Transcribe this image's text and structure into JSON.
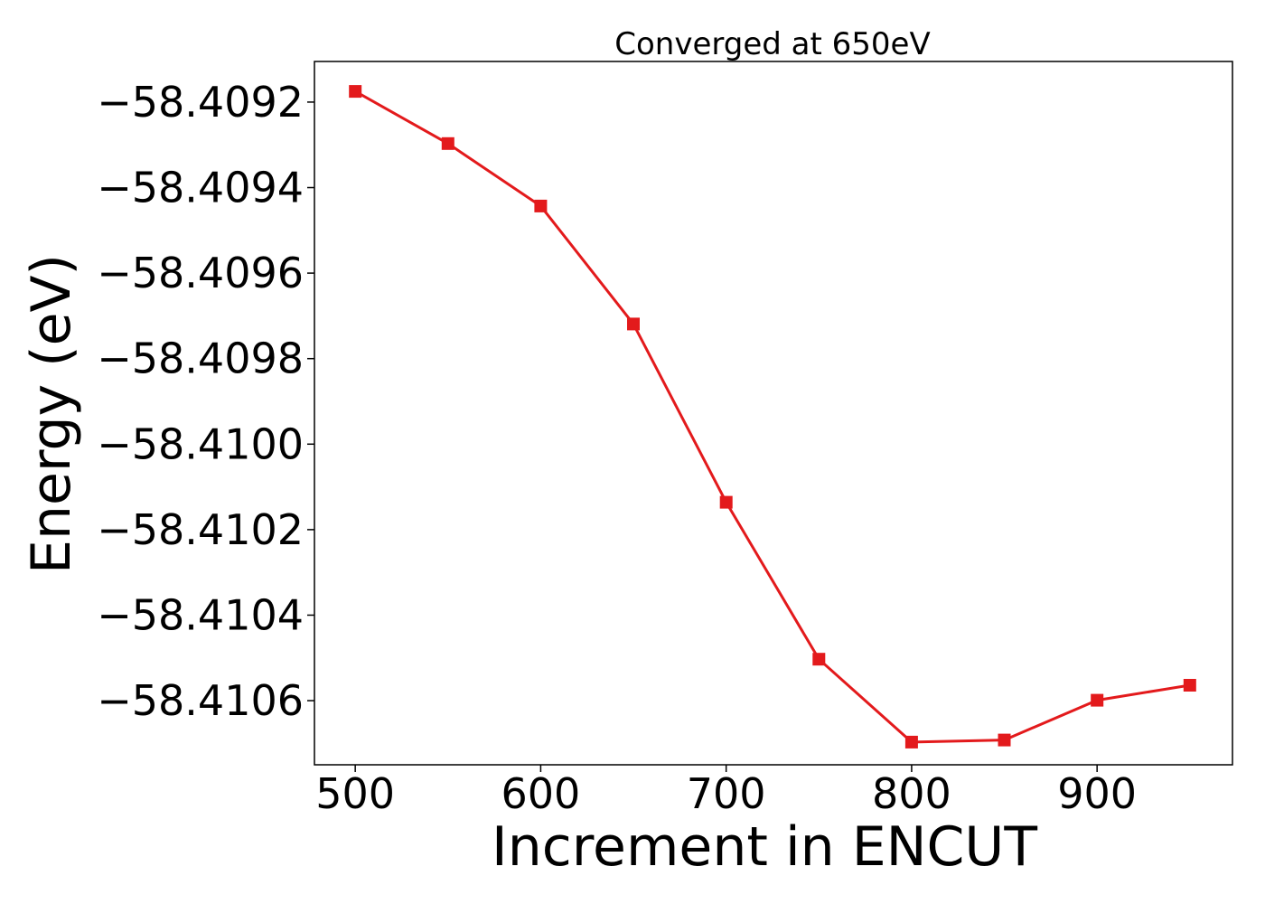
{
  "chart_data": {
    "type": "line",
    "title": "Converged at 650eV",
    "xlabel": "Increment in ENCUT",
    "ylabel": "Energy (eV)",
    "x": [
      500,
      550,
      600,
      650,
      700,
      750,
      800,
      850,
      900,
      950
    ],
    "xlim": [
      478,
      973
    ],
    "ylim": [
      -58.41075,
      -58.409105
    ],
    "xticks": [
      500,
      600,
      700,
      800,
      900
    ],
    "xtick_labels": [
      "500",
      "600",
      "700",
      "800",
      "900"
    ],
    "yticks": [
      -58.4092,
      -58.4094,
      -58.4096,
      -58.4098,
      -58.41,
      -58.4102,
      -58.4104,
      -58.4106
    ],
    "ytick_labels": [
      "−58.4092",
      "−58.4094",
      "−58.4096",
      "−58.4098",
      "−58.4100",
      "−58.4102",
      "−58.4104",
      "−58.4106"
    ],
    "grid": false,
    "legend": "none",
    "series": [
      {
        "values": [
          -58.409175,
          -58.409297,
          -58.409443,
          -58.409719,
          -58.410136,
          -58.410503,
          -58.410697,
          -58.410692,
          -58.410599,
          -58.410564
        ],
        "color": "#e31a1c",
        "marker": "square"
      }
    ]
  }
}
